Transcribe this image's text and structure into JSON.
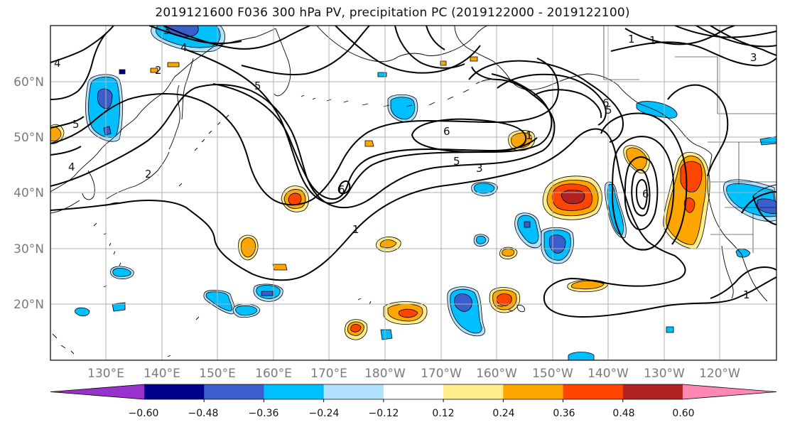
{
  "title": "2019121600 F036 300 hPa PV, precipitation PC (2019122000 - 2019122100)",
  "lat_labels": [
    "60°N",
    "50°N",
    "40°N",
    "30°N",
    "20°N"
  ],
  "lon_labels": [
    "130°E",
    "140°E",
    "150°E",
    "160°E",
    "170°E",
    "180°W",
    "170°W",
    "160°W",
    "150°W",
    "140°W",
    "130°W",
    "120°W"
  ],
  "contour_labels": [
    "3",
    "4",
    "5",
    "6",
    "1",
    "2",
    "6",
    "5",
    "3",
    "1",
    "6",
    "5",
    "1",
    "1",
    "3",
    "5",
    "4",
    "1",
    "4",
    "2",
    "6"
  ],
  "colorbar": {
    "tick_labels": [
      "−0.60",
      "−0.48",
      "−0.36",
      "−0.24",
      "−0.12",
      "0.12",
      "0.24",
      "0.36",
      "0.48",
      "0.60"
    ],
    "colors": [
      "#9932cc",
      "#00008b",
      "#3a5fcd",
      "#00bfff",
      "#b0e2ff",
      "#ffffff",
      "#ffec8b",
      "#ffa500",
      "#ff4500",
      "#b22222",
      "#ff87b4"
    ]
  }
}
